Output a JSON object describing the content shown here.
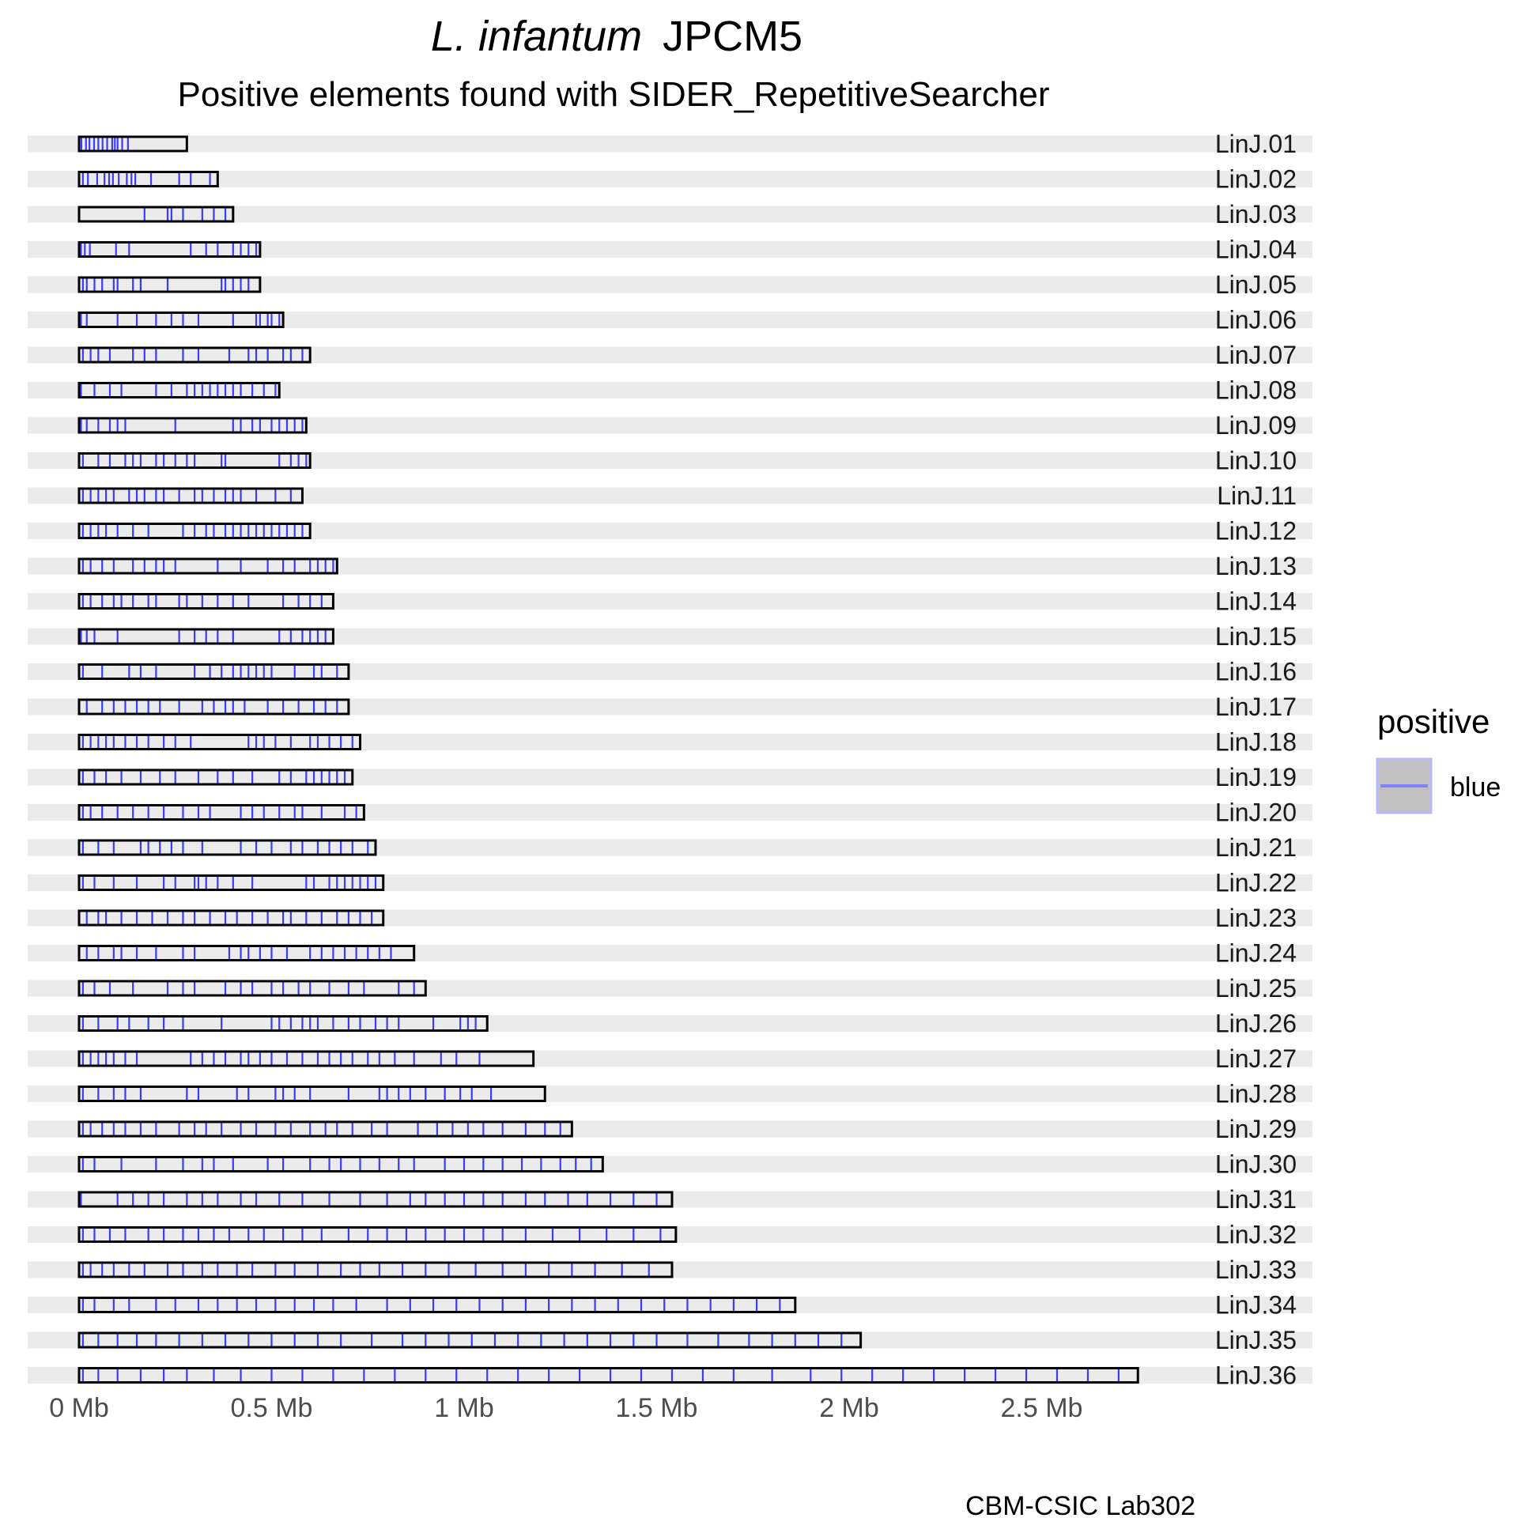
{
  "title": {
    "italic_part": "L. infantum",
    "normal_part": "JPCM5"
  },
  "subtitle": "Positive elements found with SIDER_RepetitiveSearcher",
  "caption": "CBM-CSIC Lab302",
  "legend": {
    "title": "positive",
    "items": [
      {
        "label": "blue",
        "color": "#8080ff"
      }
    ],
    "position": "right"
  },
  "colors": {
    "band": "#ebebeb",
    "element": "#0000ff",
    "outline": "#000000",
    "legend_key_fill": "#c0c0c0"
  },
  "chart_data": {
    "type": "chromosome-map",
    "x_unit": "Mb",
    "xlim": [
      0,
      2.8
    ],
    "x_ticks": [
      {
        "value": 0,
        "label": "0 Mb"
      },
      {
        "value": 0.5,
        "label": "0.5 Mb"
      },
      {
        "value": 1,
        "label": "1 Mb"
      },
      {
        "value": 1.5,
        "label": "1.5 Mb"
      },
      {
        "value": 2,
        "label": "2 Mb"
      },
      {
        "value": 2.5,
        "label": "2.5 Mb"
      }
    ],
    "grid": false,
    "chromosomes": [
      {
        "name": "LinJ.01",
        "length": 0.28,
        "elements": [
          0.006,
          0.018,
          0.027,
          0.039,
          0.05,
          0.061,
          0.073,
          0.086,
          0.093,
          0.1,
          0.112,
          0.127
        ]
      },
      {
        "name": "LinJ.02",
        "length": 0.36,
        "elements": [
          0.01,
          0.023,
          0.047,
          0.066,
          0.078,
          0.088,
          0.103,
          0.124,
          0.136,
          0.146,
          0.187,
          0.26,
          0.29,
          0.34
        ]
      },
      {
        "name": "LinJ.03",
        "length": 0.4,
        "elements": [
          0.17,
          0.23,
          0.24,
          0.27,
          0.32,
          0.35,
          0.38
        ]
      },
      {
        "name": "LinJ.04",
        "length": 0.47,
        "elements": [
          0.005,
          0.015,
          0.028,
          0.096,
          0.13,
          0.29,
          0.33,
          0.36,
          0.4,
          0.42,
          0.44,
          0.46
        ]
      },
      {
        "name": "LinJ.05",
        "length": 0.47,
        "elements": [
          0.01,
          0.02,
          0.04,
          0.06,
          0.09,
          0.1,
          0.14,
          0.16,
          0.23,
          0.37,
          0.38,
          0.4,
          0.42,
          0.44
        ]
      },
      {
        "name": "LinJ.06",
        "length": 0.53,
        "elements": [
          0.005,
          0.02,
          0.1,
          0.15,
          0.2,
          0.24,
          0.27,
          0.31,
          0.4,
          0.46,
          0.47,
          0.49,
          0.5,
          0.52
        ]
      },
      {
        "name": "LinJ.07",
        "length": 0.6,
        "elements": [
          0.01,
          0.03,
          0.05,
          0.08,
          0.14,
          0.17,
          0.2,
          0.27,
          0.31,
          0.39,
          0.44,
          0.46,
          0.49,
          0.53,
          0.55,
          0.58
        ]
      },
      {
        "name": "LinJ.08",
        "length": 0.52,
        "elements": [
          0.005,
          0.04,
          0.08,
          0.11,
          0.2,
          0.24,
          0.28,
          0.3,
          0.32,
          0.34,
          0.36,
          0.38,
          0.4,
          0.42,
          0.45,
          0.48,
          0.51
        ]
      },
      {
        "name": "LinJ.09",
        "length": 0.59,
        "elements": [
          0.005,
          0.02,
          0.05,
          0.08,
          0.1,
          0.12,
          0.25,
          0.4,
          0.42,
          0.45,
          0.47,
          0.5,
          0.52,
          0.54,
          0.56,
          0.58
        ]
      },
      {
        "name": "LinJ.10",
        "length": 0.6,
        "elements": [
          0.01,
          0.05,
          0.08,
          0.12,
          0.14,
          0.16,
          0.2,
          0.22,
          0.25,
          0.28,
          0.3,
          0.37,
          0.38,
          0.52,
          0.55,
          0.57,
          0.59
        ]
      },
      {
        "name": "LinJ.11",
        "length": 0.58,
        "elements": [
          0.01,
          0.03,
          0.05,
          0.07,
          0.09,
          0.13,
          0.15,
          0.17,
          0.2,
          0.22,
          0.26,
          0.3,
          0.32,
          0.35,
          0.38,
          0.4,
          0.42,
          0.46,
          0.51,
          0.55
        ]
      },
      {
        "name": "LinJ.12",
        "length": 0.6,
        "elements": [
          0.01,
          0.03,
          0.05,
          0.07,
          0.1,
          0.14,
          0.18,
          0.27,
          0.3,
          0.33,
          0.35,
          0.38,
          0.4,
          0.42,
          0.44,
          0.46,
          0.48,
          0.5,
          0.52,
          0.54,
          0.56,
          0.58
        ]
      },
      {
        "name": "LinJ.13",
        "length": 0.67,
        "elements": [
          0.01,
          0.03,
          0.06,
          0.09,
          0.14,
          0.17,
          0.2,
          0.22,
          0.25,
          0.36,
          0.42,
          0.49,
          0.53,
          0.56,
          0.6,
          0.62,
          0.64,
          0.66
        ]
      },
      {
        "name": "LinJ.14",
        "length": 0.66,
        "elements": [
          0.01,
          0.03,
          0.06,
          0.09,
          0.11,
          0.14,
          0.18,
          0.2,
          0.26,
          0.28,
          0.32,
          0.36,
          0.4,
          0.44,
          0.53,
          0.57,
          0.6,
          0.63
        ]
      },
      {
        "name": "LinJ.15",
        "length": 0.66,
        "elements": [
          0.005,
          0.02,
          0.04,
          0.1,
          0.26,
          0.3,
          0.33,
          0.36,
          0.4,
          0.52,
          0.55,
          0.58,
          0.6,
          0.62,
          0.64
        ]
      },
      {
        "name": "LinJ.16",
        "length": 0.7,
        "elements": [
          0.01,
          0.06,
          0.13,
          0.16,
          0.2,
          0.3,
          0.34,
          0.37,
          0.4,
          0.42,
          0.44,
          0.46,
          0.48,
          0.5,
          0.56,
          0.61,
          0.63,
          0.67
        ]
      },
      {
        "name": "LinJ.17",
        "length": 0.7,
        "elements": [
          0.02,
          0.06,
          0.09,
          0.12,
          0.15,
          0.18,
          0.21,
          0.26,
          0.32,
          0.35,
          0.38,
          0.4,
          0.43,
          0.49,
          0.53,
          0.57,
          0.61,
          0.64,
          0.67
        ]
      },
      {
        "name": "LinJ.18",
        "length": 0.73,
        "elements": [
          0.01,
          0.03,
          0.05,
          0.07,
          0.09,
          0.12,
          0.15,
          0.18,
          0.22,
          0.25,
          0.29,
          0.44,
          0.46,
          0.48,
          0.51,
          0.55,
          0.6,
          0.62,
          0.65,
          0.68,
          0.71
        ]
      },
      {
        "name": "LinJ.19",
        "length": 0.71,
        "elements": [
          0.01,
          0.04,
          0.07,
          0.11,
          0.16,
          0.21,
          0.25,
          0.31,
          0.36,
          0.4,
          0.45,
          0.52,
          0.55,
          0.59,
          0.61,
          0.63,
          0.65,
          0.67,
          0.69
        ]
      },
      {
        "name": "LinJ.20",
        "length": 0.74,
        "elements": [
          0.01,
          0.03,
          0.06,
          0.1,
          0.14,
          0.18,
          0.22,
          0.27,
          0.31,
          0.34,
          0.42,
          0.45,
          0.48,
          0.52,
          0.56,
          0.58,
          0.63,
          0.69,
          0.72
        ]
      },
      {
        "name": "LinJ.21",
        "length": 0.77,
        "elements": [
          0.01,
          0.05,
          0.09,
          0.16,
          0.18,
          0.21,
          0.24,
          0.27,
          0.32,
          0.42,
          0.46,
          0.5,
          0.55,
          0.58,
          0.62,
          0.65,
          0.68,
          0.71,
          0.75
        ]
      },
      {
        "name": "LinJ.22",
        "length": 0.79,
        "elements": [
          0.01,
          0.04,
          0.09,
          0.15,
          0.22,
          0.25,
          0.3,
          0.31,
          0.33,
          0.36,
          0.4,
          0.45,
          0.59,
          0.61,
          0.65,
          0.67,
          0.69,
          0.71,
          0.73,
          0.75,
          0.77
        ]
      },
      {
        "name": "LinJ.23",
        "length": 0.79,
        "elements": [
          0.02,
          0.05,
          0.07,
          0.11,
          0.15,
          0.19,
          0.23,
          0.27,
          0.3,
          0.34,
          0.38,
          0.41,
          0.45,
          0.49,
          0.53,
          0.55,
          0.59,
          0.63,
          0.67,
          0.7,
          0.73,
          0.76
        ]
      },
      {
        "name": "LinJ.24",
        "length": 0.87,
        "elements": [
          0.02,
          0.05,
          0.09,
          0.11,
          0.15,
          0.2,
          0.27,
          0.3,
          0.39,
          0.42,
          0.44,
          0.47,
          0.5,
          0.54,
          0.6,
          0.63,
          0.66,
          0.69,
          0.72,
          0.75,
          0.78,
          0.81
        ]
      },
      {
        "name": "LinJ.25",
        "length": 0.9,
        "elements": [
          0.01,
          0.04,
          0.08,
          0.14,
          0.23,
          0.27,
          0.3,
          0.38,
          0.42,
          0.45,
          0.5,
          0.53,
          0.57,
          0.6,
          0.65,
          0.7,
          0.74,
          0.83,
          0.87
        ]
      },
      {
        "name": "LinJ.26",
        "length": 1.06,
        "elements": [
          0.01,
          0.05,
          0.1,
          0.13,
          0.18,
          0.22,
          0.27,
          0.37,
          0.5,
          0.52,
          0.55,
          0.58,
          0.6,
          0.62,
          0.66,
          0.7,
          0.73,
          0.77,
          0.8,
          0.83,
          0.92,
          0.99,
          1.01,
          1.03
        ]
      },
      {
        "name": "LinJ.27",
        "length": 1.18,
        "elements": [
          0.01,
          0.03,
          0.05,
          0.07,
          0.09,
          0.12,
          0.15,
          0.29,
          0.32,
          0.35,
          0.38,
          0.42,
          0.44,
          0.47,
          0.5,
          0.54,
          0.58,
          0.62,
          0.65,
          0.68,
          0.71,
          0.75,
          0.78,
          0.82,
          0.87,
          0.94,
          0.98,
          1.04
        ]
      },
      {
        "name": "LinJ.28",
        "length": 1.21,
        "elements": [
          0.01,
          0.05,
          0.09,
          0.12,
          0.16,
          0.28,
          0.31,
          0.41,
          0.44,
          0.51,
          0.53,
          0.56,
          0.6,
          0.7,
          0.78,
          0.8,
          0.83,
          0.86,
          0.9,
          0.95,
          0.99,
          1.02,
          1.07
        ]
      },
      {
        "name": "LinJ.29",
        "length": 1.28,
        "elements": [
          0.01,
          0.03,
          0.06,
          0.09,
          0.12,
          0.16,
          0.2,
          0.26,
          0.3,
          0.33,
          0.37,
          0.42,
          0.46,
          0.51,
          0.55,
          0.6,
          0.64,
          0.67,
          0.71,
          0.76,
          0.8,
          0.88,
          0.93,
          0.97,
          1.01,
          1.05,
          1.1,
          1.16,
          1.21,
          1.25
        ]
      },
      {
        "name": "LinJ.30",
        "length": 1.36,
        "elements": [
          0.01,
          0.04,
          0.11,
          0.2,
          0.27,
          0.32,
          0.35,
          0.4,
          0.49,
          0.53,
          0.6,
          0.65,
          0.68,
          0.73,
          0.78,
          0.83,
          0.87,
          0.95,
          1.0,
          1.05,
          1.1,
          1.15,
          1.2,
          1.25,
          1.29,
          1.33
        ]
      },
      {
        "name": "LinJ.31",
        "length": 1.54,
        "elements": [
          0.005,
          0.1,
          0.14,
          0.18,
          0.22,
          0.28,
          0.32,
          0.36,
          0.42,
          0.46,
          0.52,
          0.58,
          0.65,
          0.73,
          0.8,
          0.86,
          0.9,
          0.95,
          1.0,
          1.05,
          1.1,
          1.16,
          1.21,
          1.27,
          1.32,
          1.38,
          1.44,
          1.5
        ]
      },
      {
        "name": "LinJ.32",
        "length": 1.55,
        "elements": [
          0.01,
          0.04,
          0.08,
          0.12,
          0.18,
          0.22,
          0.27,
          0.31,
          0.35,
          0.39,
          0.44,
          0.48,
          0.53,
          0.58,
          0.63,
          0.7,
          0.75,
          0.8,
          0.85,
          0.9,
          0.95,
          1.0,
          1.05,
          1.1,
          1.16,
          1.23,
          1.3,
          1.37,
          1.44,
          1.51
        ]
      },
      {
        "name": "LinJ.33",
        "length": 1.54,
        "elements": [
          0.01,
          0.03,
          0.06,
          0.09,
          0.13,
          0.17,
          0.23,
          0.27,
          0.32,
          0.36,
          0.41,
          0.45,
          0.51,
          0.56,
          0.62,
          0.68,
          0.73,
          0.78,
          0.84,
          0.9,
          0.96,
          1.03,
          1.1,
          1.16,
          1.22,
          1.28,
          1.34,
          1.41,
          1.48
        ]
      },
      {
        "name": "LinJ.34",
        "length": 1.86,
        "elements": [
          0.01,
          0.04,
          0.09,
          0.13,
          0.2,
          0.25,
          0.31,
          0.36,
          0.41,
          0.46,
          0.51,
          0.56,
          0.61,
          0.66,
          0.72,
          0.8,
          0.86,
          0.92,
          0.98,
          1.04,
          1.1,
          1.16,
          1.22,
          1.28,
          1.34,
          1.4,
          1.46,
          1.52,
          1.58,
          1.64,
          1.7,
          1.76,
          1.82
        ]
      },
      {
        "name": "LinJ.35",
        "length": 2.03,
        "elements": [
          0.01,
          0.05,
          0.1,
          0.15,
          0.2,
          0.26,
          0.32,
          0.38,
          0.44,
          0.5,
          0.56,
          0.62,
          0.68,
          0.76,
          0.84,
          0.9,
          0.96,
          1.02,
          1.08,
          1.14,
          1.2,
          1.26,
          1.32,
          1.38,
          1.44,
          1.5,
          1.58,
          1.66,
          1.74,
          1.8,
          1.86,
          1.92,
          1.98
        ]
      },
      {
        "name": "LinJ.36",
        "length": 2.75,
        "elements": [
          0.01,
          0.05,
          0.1,
          0.16,
          0.22,
          0.28,
          0.35,
          0.42,
          0.5,
          0.58,
          0.66,
          0.74,
          0.82,
          0.9,
          0.98,
          1.06,
          1.14,
          1.22,
          1.3,
          1.38,
          1.46,
          1.54,
          1.62,
          1.7,
          1.8,
          1.9,
          1.98,
          2.06,
          2.14,
          2.22,
          2.3,
          2.38,
          2.46,
          2.54,
          2.62,
          2.7
        ]
      }
    ]
  }
}
